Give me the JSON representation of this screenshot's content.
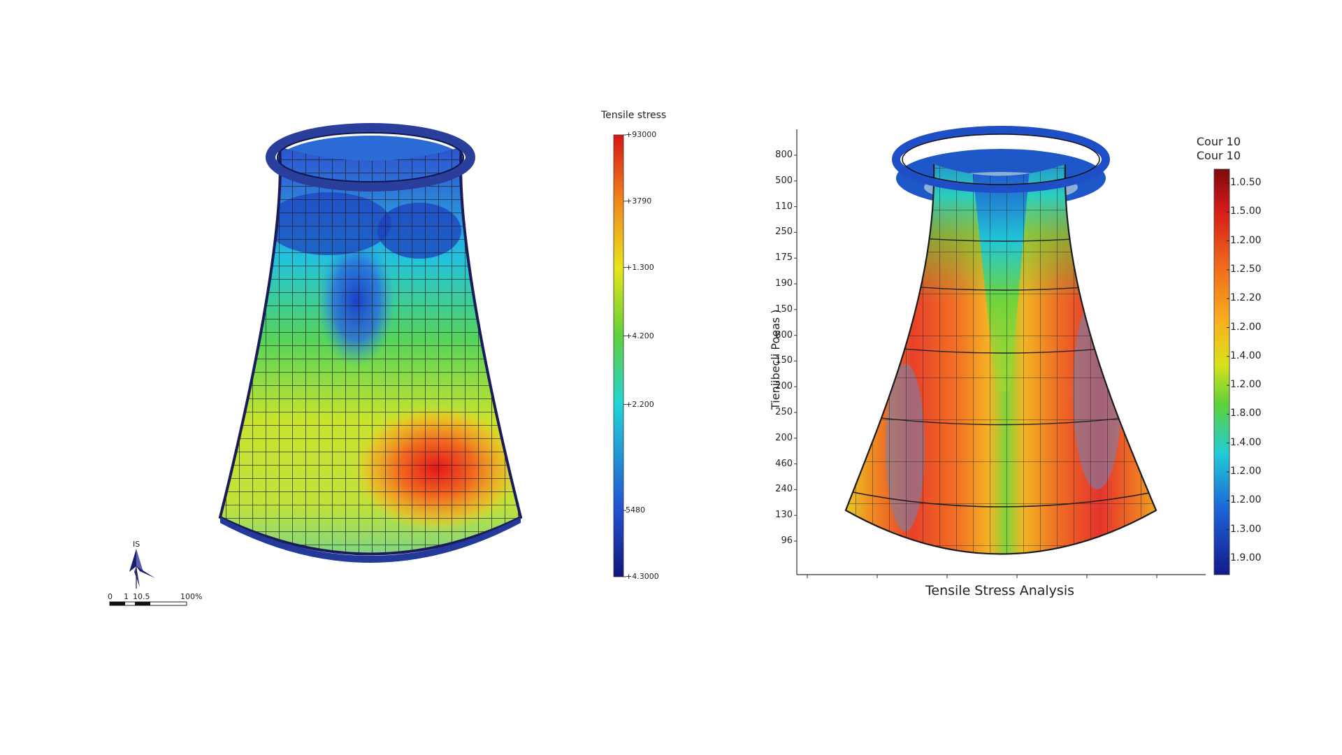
{
  "left": {
    "colorbar": {
      "title": "Tensile stress",
      "ticks": [
        "+93000",
        "+3790",
        "+1.300",
        "+4.200",
        "+2.200",
        "5480",
        "+4.3000"
      ],
      "tick_fractions": [
        0.0,
        0.15,
        0.3,
        0.455,
        0.61,
        0.85,
        1.0
      ],
      "colors": [
        "#d71616",
        "#f1861d",
        "#e9e41c",
        "#5ed13a",
        "#21d4d9",
        "#2350d2",
        "#10157a"
      ]
    },
    "compass": {
      "north_label": "IS"
    },
    "scale_bar": {
      "labels": [
        "0",
        "1",
        "10.5",
        "100%"
      ]
    }
  },
  "right": {
    "colorbar": {
      "title_lines": [
        "Cour 10",
        "Cour 10"
      ],
      "ticks": [
        "1.0.50",
        "1.5.00",
        "1.2.00",
        "1.2.50",
        "1.2.20",
        "1.2.00",
        "1.4.00",
        "1.2.00",
        "1.8.00",
        "1.4.00",
        "1.2.00",
        "1.2.00",
        "1.3.00",
        "1.9.00"
      ],
      "colors": [
        "#7e0a0c",
        "#d41a1a",
        "#f06a1c",
        "#f8b21d",
        "#d9e21b",
        "#5dd13b",
        "#21cdd6",
        "#1c63d8",
        "#141a8a"
      ]
    },
    "y_axis": {
      "label": "Tieniibecli Poeas )",
      "ticks": [
        "800",
        "500",
        "110",
        "250",
        "175",
        "190",
        "150",
        "800",
        "150",
        "200",
        "250",
        "200",
        "460",
        "240",
        "130",
        "96"
      ]
    },
    "x_axis": {
      "label": "Tensile Stress Analysis"
    }
  }
}
